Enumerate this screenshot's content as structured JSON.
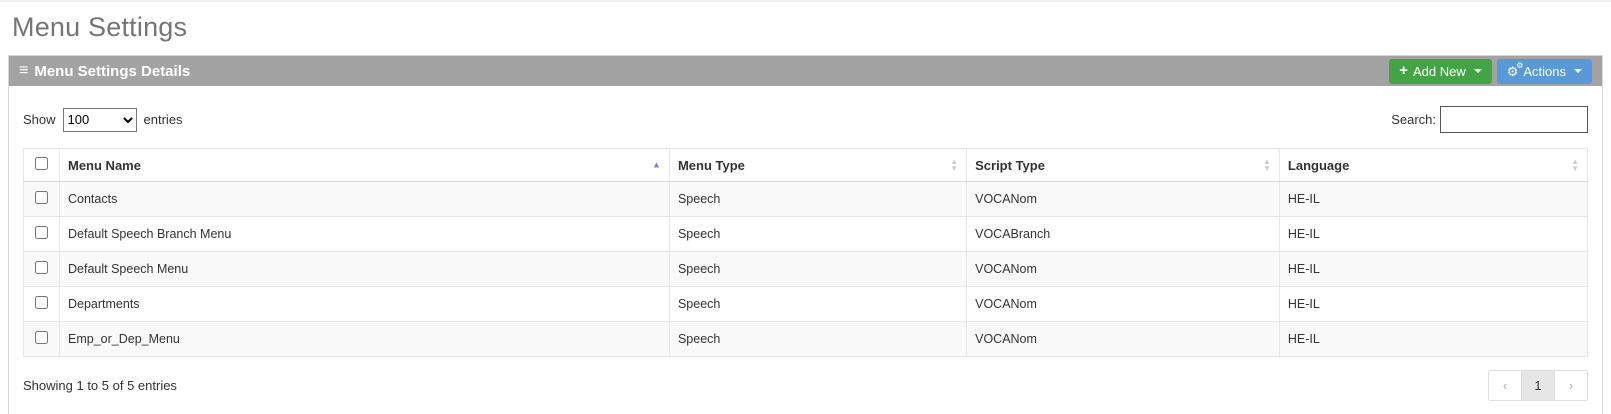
{
  "page": {
    "title": "Menu Settings"
  },
  "panel": {
    "title": "Menu Settings Details",
    "buttons": {
      "add_new": "Add New",
      "actions": "Actions"
    }
  },
  "controls": {
    "show_label": "Show",
    "entries_label": "entries",
    "page_size": "100",
    "search_label": "Search:",
    "search_value": ""
  },
  "table": {
    "columns": [
      "Menu Name",
      "Menu Type",
      "Script Type",
      "Language"
    ],
    "sort": {
      "column": "Menu Name",
      "direction": "ascending"
    },
    "rows": [
      {
        "menu_name": "Contacts",
        "menu_type": "Speech",
        "script_type": "VOCANom",
        "language": "HE-IL"
      },
      {
        "menu_name": "Default Speech Branch Menu",
        "menu_type": "Speech",
        "script_type": "VOCABranch",
        "language": "HE-IL"
      },
      {
        "menu_name": "Default Speech Menu",
        "menu_type": "Speech",
        "script_type": "VOCANom",
        "language": "HE-IL"
      },
      {
        "menu_name": "Departments",
        "menu_type": "Speech",
        "script_type": "VOCANom",
        "language": "HE-IL"
      },
      {
        "menu_name": "Emp_or_Dep_Menu",
        "menu_type": "Speech",
        "script_type": "VOCANom",
        "language": "HE-IL"
      }
    ]
  },
  "footer": {
    "showing_text": "Showing 1 to 5 of 5 entries",
    "pagination": {
      "prev": "‹",
      "current": "1",
      "next": "›"
    }
  },
  "icons": {
    "hamburger": "≡",
    "plus": "+",
    "cogs": "⚙",
    "sort_ascending": "▲",
    "sort_up": "▲",
    "sort_down": "▼"
  },
  "colors": {
    "add_new_green": "#42a445",
    "actions_blue": "#5899d8",
    "header_gray": "#a3a3a3",
    "sort_active": "#7e83d9"
  }
}
